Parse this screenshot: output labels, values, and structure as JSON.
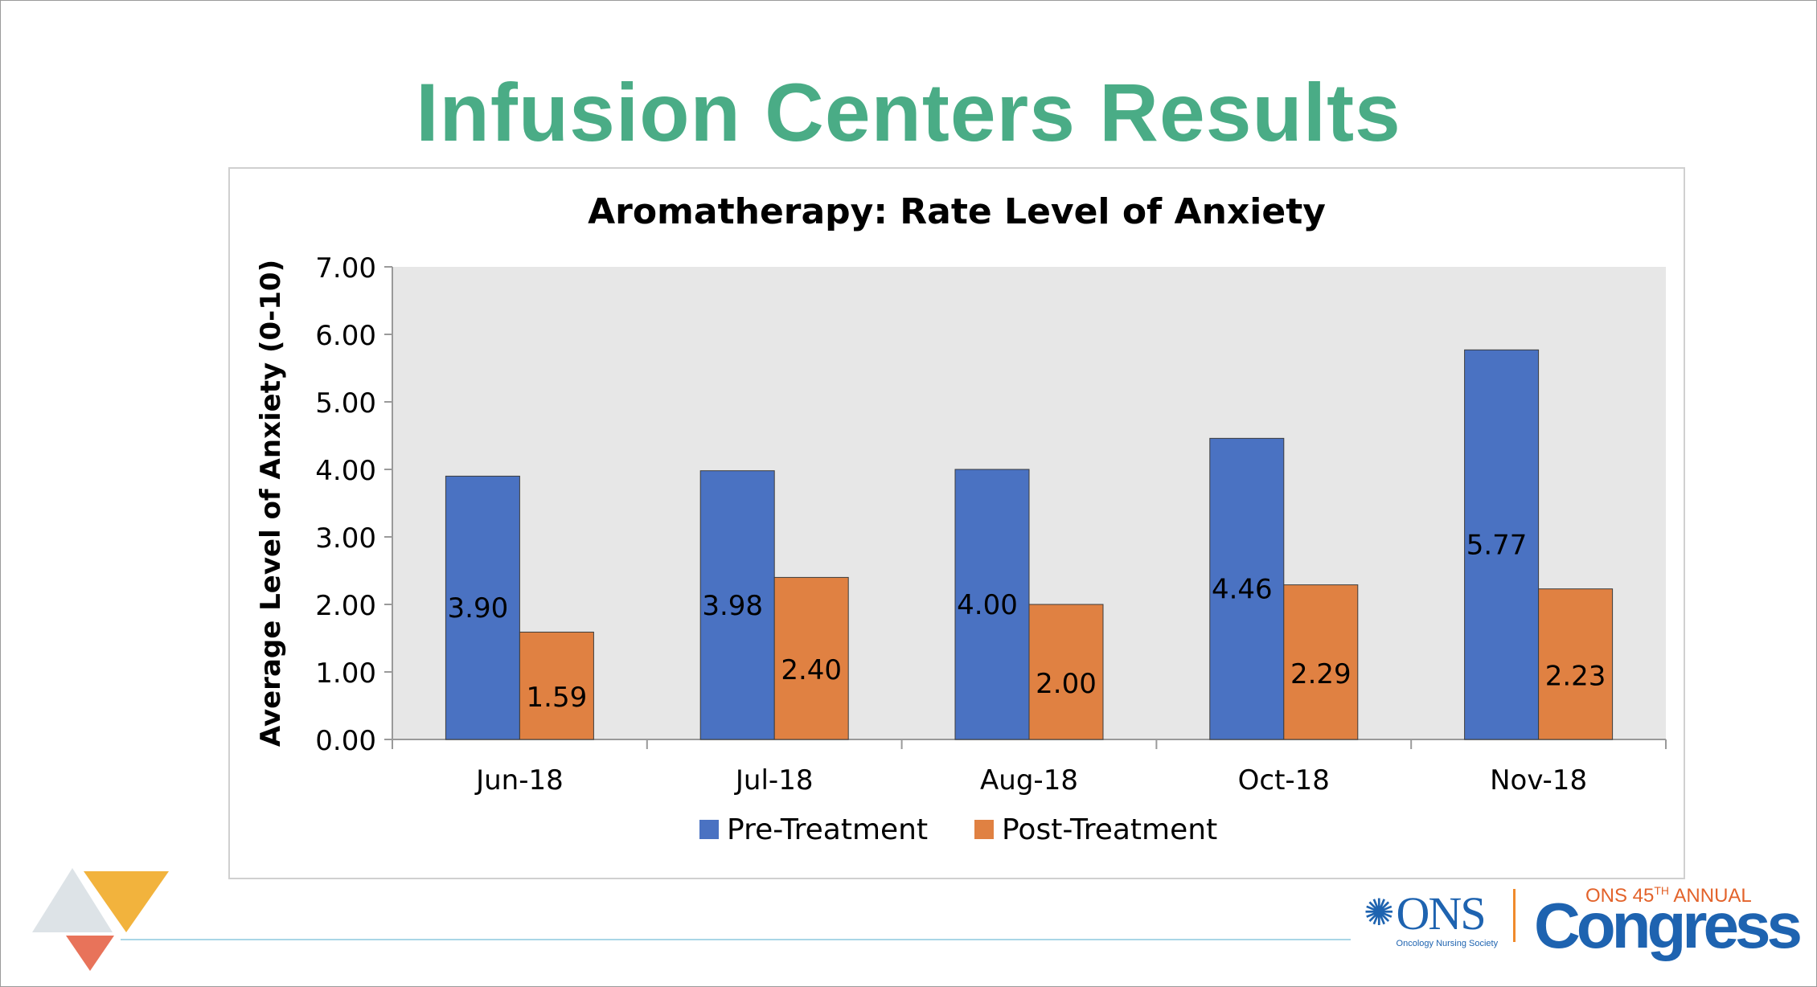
{
  "slide": {
    "title": "Infusion Centers Results"
  },
  "chart_data": {
    "type": "bar",
    "title": "Aromatherapy: Rate Level of Anxiety",
    "xlabel": "",
    "ylabel": "Average Level of Anxiety (0-10)",
    "ylim": [
      0,
      7
    ],
    "yticks": [
      "0.00",
      "1.00",
      "2.00",
      "3.00",
      "4.00",
      "5.00",
      "6.00",
      "7.00"
    ],
    "categories": [
      "Jun-18",
      "Jul-18",
      "Aug-18",
      "Oct-18",
      "Nov-18"
    ],
    "series": [
      {
        "name": "Pre-Treatment",
        "color": "#4a72c2",
        "values": [
          3.9,
          3.98,
          4.0,
          4.46,
          5.77
        ],
        "labels": [
          "3.90",
          "3.98",
          "4.00",
          "4.46",
          "5.77"
        ]
      },
      {
        "name": "Post-Treatment",
        "color": "#e08142",
        "values": [
          1.59,
          2.4,
          2.0,
          2.29,
          2.23
        ],
        "labels": [
          "1.59",
          "2.40",
          "2.00",
          "2.29",
          "2.23"
        ]
      }
    ],
    "grid": false,
    "plot_background": "#e7e7e7",
    "legend": "bottom"
  },
  "logos": {
    "ons_text": "ONS",
    "ons_subtitle": "Oncology Nursing Society",
    "congress_heading": "ONS 45",
    "congress_heading_sup": "TH",
    "congress_heading_rest": " ANNUAL",
    "congress_word": "Congress"
  },
  "colors": {
    "title_green": "#4aac86",
    "brand_blue": "#1e63b0",
    "brand_orange": "#e3632b"
  }
}
